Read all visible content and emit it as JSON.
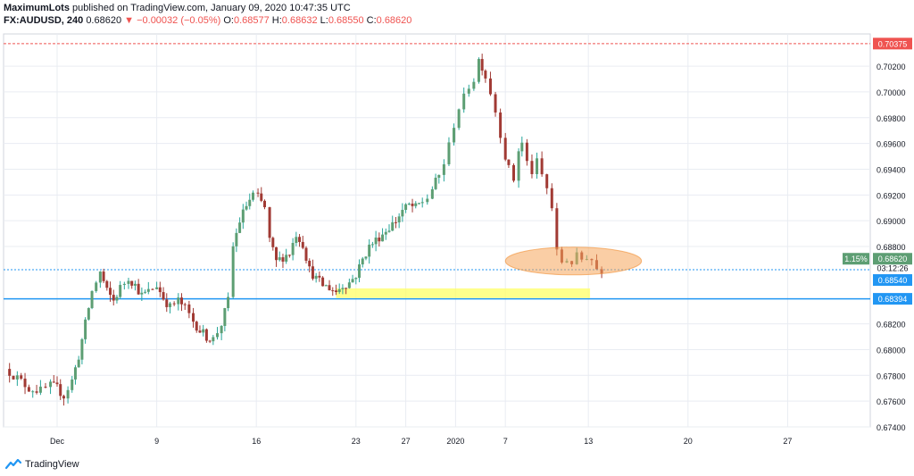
{
  "header": {
    "author": "MaximumLots",
    "published": "published on TradingView.com, January 09, 2020 10:47:35 UTC",
    "symbol": "FX:AUDUSD, 240",
    "last": "0.68620",
    "change": "−0.00032 (−0.05%)",
    "o_label": "O:",
    "o_value": "0.68577",
    "h_label": "H:",
    "h_value": "0.68632",
    "l_label": "L:",
    "l_value": "0.68550",
    "c_label": "C:",
    "c_value": "0.68620"
  },
  "footer": {
    "brand": "TradingView"
  },
  "colors": {
    "up": "#26a69a",
    "up_fill": "#5d9e73",
    "down": "#a13a34",
    "grid": "#e9ecf2",
    "blue_line": "#2196f3",
    "red_line": "#ef5350",
    "highlight_yellow": "#ffff66",
    "highlight_orange": "#f5a65b",
    "last_badge": "#5d9e73",
    "blue_badge": "#2196f3",
    "red_badge": "#ef5350"
  },
  "chart_data": {
    "type": "candlestick",
    "ylim": [
      0.674,
      0.7045
    ],
    "y_ticks": [
      "0.70200",
      "0.70000",
      "0.69800",
      "0.69600",
      "0.69400",
      "0.69200",
      "0.69000",
      "0.68800",
      "0.68200",
      "0.68000",
      "0.67800",
      "0.67600",
      "0.67400"
    ],
    "x_ticks": [
      {
        "label": "Dec",
        "x": 0
      },
      {
        "label": "9",
        "x": 6
      },
      {
        "label": "16",
        "x": 12
      },
      {
        "label": "23",
        "x": 18
      },
      {
        "label": "27",
        "x": 21
      },
      {
        "label": "2020",
        "x": 24
      },
      {
        "label": "7",
        "x": 27
      },
      {
        "label": "13",
        "x": 32
      },
      {
        "label": "20",
        "x": 38
      },
      {
        "label": "27",
        "x": 44
      }
    ],
    "price_labels": {
      "red_level": "0.70375",
      "last_pct": "1.15%",
      "last_price": "0.68620",
      "countdown": "03:12:26",
      "level_1": "0.68540",
      "level_2": "0.68394"
    },
    "levels": [
      {
        "value": 0.70375,
        "style": "dashed",
        "color": "red"
      },
      {
        "value": 0.6862,
        "style": "dotted",
        "color": "blue"
      },
      {
        "value": 0.68394,
        "style": "solid",
        "color": "blue"
      }
    ],
    "annotations": [
      {
        "shape": "rectangle",
        "color": "yellow",
        "x_range": [
          16.8,
          32.1
        ],
        "y_range": [
          0.684,
          0.68475
        ]
      },
      {
        "shape": "ellipse",
        "color": "orange",
        "x_range": [
          27.0,
          35.2
        ],
        "y_range": [
          0.6858,
          0.68795
        ]
      }
    ],
    "path": [
      [
        -3.1,
        0.6785
      ],
      [
        -2.4,
        0.6778
      ],
      [
        -1.7,
        0.677
      ],
      [
        -1.0,
        0.6768
      ],
      [
        -0.4,
        0.6772
      ],
      [
        0.0,
        0.677
      ],
      [
        0.4,
        0.6764
      ],
      [
        0.9,
        0.6776
      ],
      [
        1.3,
        0.6795
      ],
      [
        1.7,
        0.682
      ],
      [
        2.1,
        0.6845
      ],
      [
        2.6,
        0.686
      ],
      [
        3.0,
        0.6845
      ],
      [
        3.4,
        0.6838
      ],
      [
        3.8,
        0.6848
      ],
      [
        4.3,
        0.6856
      ],
      [
        4.7,
        0.685
      ],
      [
        5.1,
        0.6842
      ],
      [
        5.5,
        0.6845
      ],
      [
        6.0,
        0.685
      ],
      [
        6.4,
        0.684
      ],
      [
        6.8,
        0.6833
      ],
      [
        7.3,
        0.6838
      ],
      [
        7.7,
        0.6832
      ],
      [
        8.2,
        0.6822
      ],
      [
        8.6,
        0.6815
      ],
      [
        9.0,
        0.681
      ],
      [
        9.4,
        0.6808
      ],
      [
        9.9,
        0.682
      ],
      [
        10.3,
        0.6838
      ],
      [
        10.6,
        0.688
      ],
      [
        11.0,
        0.69
      ],
      [
        11.4,
        0.6912
      ],
      [
        11.8,
        0.692
      ],
      [
        12.1,
        0.6918
      ],
      [
        12.5,
        0.691
      ],
      [
        12.8,
        0.6885
      ],
      [
        13.2,
        0.6868
      ],
      [
        13.6,
        0.6872
      ],
      [
        14.0,
        0.6875
      ],
      [
        14.4,
        0.689
      ],
      [
        14.8,
        0.6882
      ],
      [
        15.2,
        0.6862
      ],
      [
        15.6,
        0.6855
      ],
      [
        16.0,
        0.685
      ],
      [
        16.4,
        0.6848
      ],
      [
        16.8,
        0.6845
      ],
      [
        17.2,
        0.685
      ],
      [
        17.6,
        0.6852
      ],
      [
        18.0,
        0.6858
      ],
      [
        18.4,
        0.687
      ],
      [
        18.8,
        0.688
      ],
      [
        19.2,
        0.6885
      ],
      [
        19.6,
        0.689
      ],
      [
        20.0,
        0.6895
      ],
      [
        20.4,
        0.69
      ],
      [
        20.8,
        0.6908
      ],
      [
        21.2,
        0.6912
      ],
      [
        21.6,
        0.691
      ],
      [
        22.0,
        0.6915
      ],
      [
        22.3,
        0.6918
      ],
      [
        22.6,
        0.6925
      ],
      [
        23.0,
        0.6935
      ],
      [
        23.3,
        0.6945
      ],
      [
        23.6,
        0.6958
      ],
      [
        23.9,
        0.6975
      ],
      [
        24.2,
        0.6988
      ],
      [
        24.5,
        0.6995
      ],
      [
        24.8,
        0.7005
      ],
      [
        25.1,
        0.701
      ],
      [
        25.4,
        0.7025
      ],
      [
        25.6,
        0.702
      ],
      [
        25.8,
        0.7012
      ],
      [
        26.1,
        0.7
      ],
      [
        26.4,
        0.6985
      ],
      [
        26.7,
        0.6968
      ],
      [
        27.0,
        0.695
      ],
      [
        27.2,
        0.694
      ],
      [
        27.5,
        0.6932
      ],
      [
        27.8,
        0.6955
      ],
      [
        28.0,
        0.696
      ],
      [
        28.3,
        0.6945
      ],
      [
        28.6,
        0.6938
      ],
      [
        28.9,
        0.6945
      ],
      [
        29.2,
        0.6935
      ],
      [
        29.5,
        0.6925
      ],
      [
        29.8,
        0.691
      ],
      [
        30.1,
        0.6875
      ],
      [
        30.4,
        0.6868
      ],
      [
        30.7,
        0.687
      ],
      [
        31.0,
        0.6868
      ],
      [
        31.3,
        0.6872
      ],
      [
        31.6,
        0.687
      ],
      [
        31.9,
        0.6873
      ],
      [
        32.2,
        0.687
      ],
      [
        32.5,
        0.6863
      ],
      [
        32.8,
        0.6862
      ]
    ]
  }
}
